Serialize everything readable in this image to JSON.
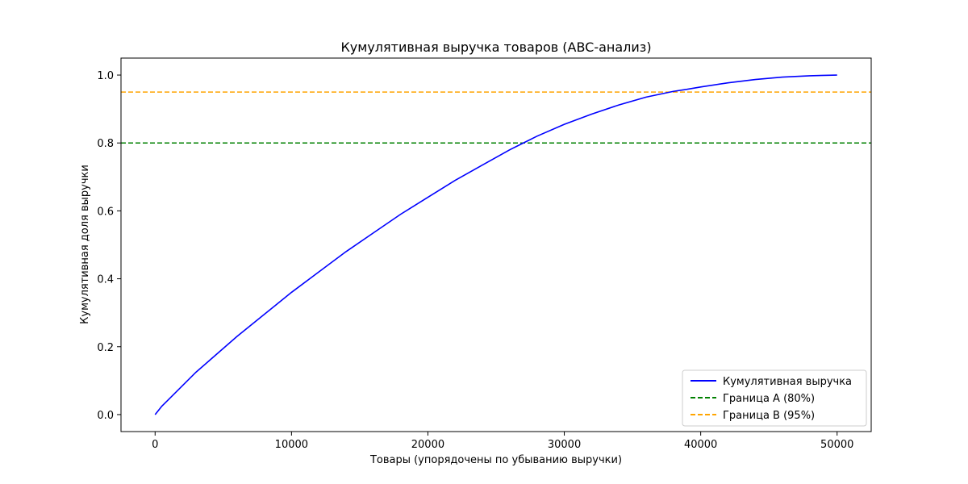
{
  "chart_data": {
    "type": "line",
    "title": "Кумулятивная выручка товаров (ABC-анализ)",
    "xlabel": "Товары (упорядочены по убыванию выручки)",
    "ylabel": "Кумулятивная доля выручки",
    "xlim": [
      -2500,
      52500
    ],
    "ylim": [
      -0.05,
      1.05
    ],
    "xticks": [
      0,
      10000,
      20000,
      30000,
      40000,
      50000
    ],
    "yticks": [
      0.0,
      0.2,
      0.4,
      0.6,
      0.8,
      1.0
    ],
    "xtick_labels": [
      "0",
      "10000",
      "20000",
      "30000",
      "40000",
      "50000"
    ],
    "ytick_labels": [
      "0.0",
      "0.2",
      "0.4",
      "0.6",
      "0.8",
      "1.0"
    ],
    "grid": false,
    "legend_position": "bottom-right",
    "series": [
      {
        "name": "Кумулятивная выручка",
        "color": "#0000ff",
        "style": "solid",
        "x": [
          0,
          500,
          1000,
          2000,
          3000,
          4000,
          5000,
          6000,
          8000,
          10000,
          12000,
          14000,
          16000,
          18000,
          20000,
          22000,
          24000,
          26000,
          27000,
          28000,
          30000,
          32000,
          34000,
          36000,
          38000,
          39000,
          40000,
          42000,
          44000,
          46000,
          48000,
          50000
        ],
        "y": [
          0.0,
          0.025,
          0.045,
          0.085,
          0.125,
          0.16,
          0.195,
          0.23,
          0.295,
          0.36,
          0.42,
          0.48,
          0.535,
          0.59,
          0.64,
          0.69,
          0.735,
          0.78,
          0.8,
          0.82,
          0.855,
          0.885,
          0.912,
          0.935,
          0.952,
          0.958,
          0.965,
          0.977,
          0.987,
          0.994,
          0.998,
          1.0
        ]
      },
      {
        "name": "Граница A (80%)",
        "color": "#008000",
        "style": "dashed",
        "hline": 0.8
      },
      {
        "name": "Граница B (95%)",
        "color": "#ffa500",
        "style": "dashed",
        "hline": 0.95
      }
    ]
  }
}
